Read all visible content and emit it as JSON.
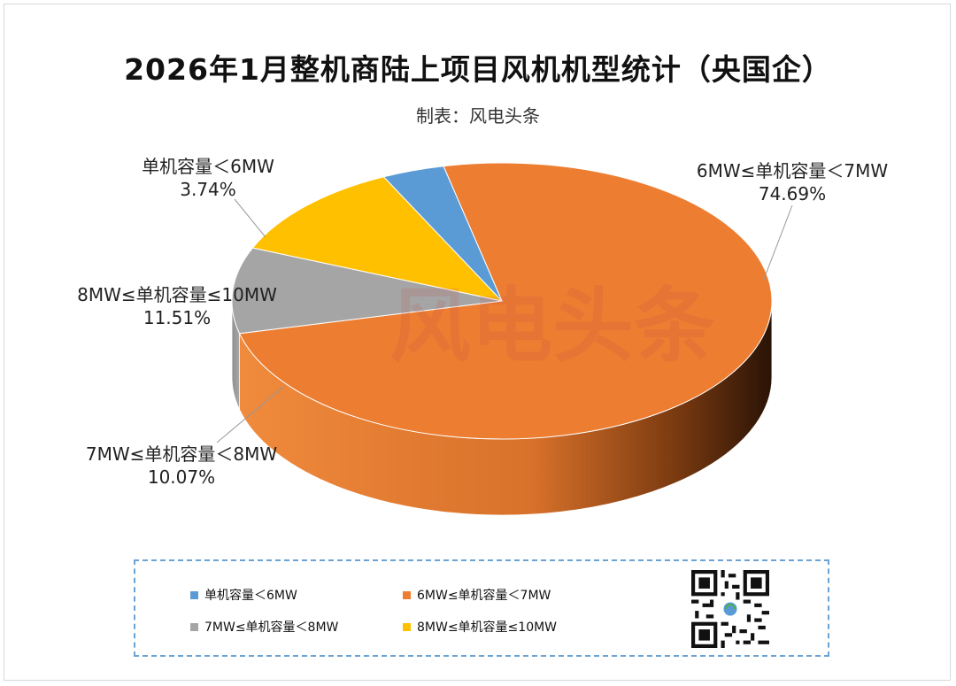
{
  "header": {
    "title": "2026年1月整机商陆上项目风机机型统计（央国企）",
    "subtitle": "制表：风电头条"
  },
  "watermark": {
    "text": "风电头条"
  },
  "colors": {
    "lt6": "#5b9bd5",
    "6to7": "#ed7d31",
    "7to8": "#a5a5a5",
    "8to10": "#ffc000"
  },
  "chart_data": {
    "type": "pie",
    "slices": [
      {
        "name": "单机容量＜6MW",
        "value": 3.74,
        "label": "3.74%",
        "color": "#5b9bd5"
      },
      {
        "name": "6MW≤单机容量＜7MW",
        "value": 74.69,
        "label": "74.69%",
        "color": "#ed7d31"
      },
      {
        "name": "7MW≤单机容量＜8MW",
        "value": 10.07,
        "label": "10.07%",
        "color": "#a5a5a5"
      },
      {
        "name": "8MW≤单机容量≤10MW",
        "value": 11.51,
        "label": "11.51%",
        "color": "#ffc000"
      }
    ],
    "legend_position": "bottom"
  },
  "legend": {
    "items": [
      {
        "label": "单机容量＜6MW"
      },
      {
        "label": "6MW≤单机容量＜7MW"
      },
      {
        "label": "7MW≤单机容量＜8MW"
      },
      {
        "label": "8MW≤单机容量≤10MW"
      }
    ]
  },
  "qr": {
    "icon": "qr-code-icon"
  }
}
